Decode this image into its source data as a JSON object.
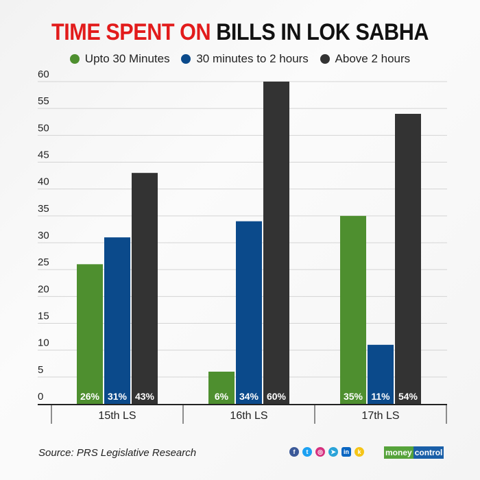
{
  "chart_data": {
    "type": "bar",
    "title_red": "TIME SPENT ON",
    "title_black": "BILLS IN LOK SABHA",
    "categories": [
      "15th LS",
      "16th LS",
      "17th LS"
    ],
    "series": [
      {
        "name": "Upto 30 Minutes",
        "color": "#4e8f2f",
        "values": [
          26,
          6,
          35
        ],
        "labels": [
          "26%",
          "6%",
          "35%"
        ]
      },
      {
        "name": "30 minutes to 2 hours",
        "color": "#0b4a8b",
        "values": [
          31,
          34,
          11
        ],
        "labels": [
          "31%",
          "34%",
          "11%"
        ]
      },
      {
        "name": "Above 2 hours",
        "color": "#333333",
        "values": [
          43,
          60,
          54
        ],
        "labels": [
          "43%",
          "60%",
          "54%"
        ]
      }
    ],
    "yticks": [
      0,
      5,
      10,
      15,
      20,
      25,
      30,
      35,
      40,
      45,
      50,
      55,
      60
    ],
    "ylim": [
      0,
      60
    ],
    "grid": true,
    "legend_placement": "top"
  },
  "footer": {
    "source": "Source: PRS Legislative Research",
    "social_icons": [
      "facebook-icon",
      "twitter-icon",
      "instagram-icon",
      "telegram-icon",
      "linkedin-icon",
      "koo-icon"
    ],
    "logo_part1": "money",
    "logo_part2": "control"
  }
}
